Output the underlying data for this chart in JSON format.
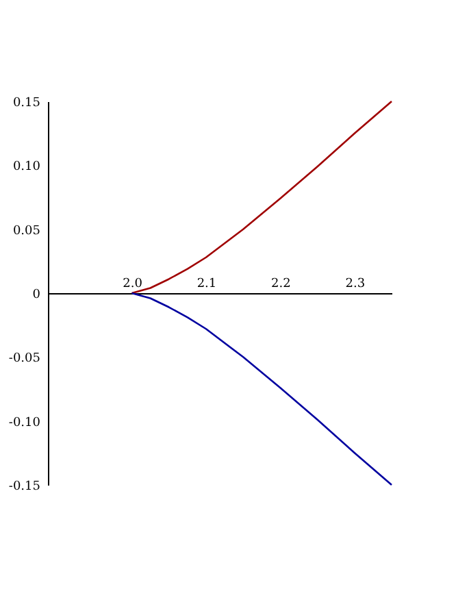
{
  "chart_data": {
    "type": "line",
    "x": [
      2.0,
      2.025,
      2.05,
      2.075,
      2.1,
      2.15,
      2.2,
      2.25,
      2.3,
      2.35
    ],
    "series": [
      {
        "color": "#a00000",
        "values": [
          0,
          0.004,
          0.011,
          0.019,
          0.028,
          0.05,
          0.074,
          0.099,
          0.125,
          0.15
        ]
      },
      {
        "color": "#0000a0",
        "values": [
          0,
          -0.004,
          -0.011,
          -0.019,
          -0.028,
          -0.05,
          -0.074,
          -0.099,
          -0.125,
          -0.15
        ]
      }
    ],
    "xlim": [
      1.887,
      2.35
    ],
    "ylim": [
      -0.15,
      0.15
    ],
    "xticks": [
      {
        "value": 2.0,
        "label": "2.0"
      },
      {
        "value": 2.1,
        "label": "2.1"
      },
      {
        "value": 2.2,
        "label": "2.2"
      },
      {
        "value": 2.3,
        "label": "2.3"
      }
    ],
    "yticks": [
      {
        "value": -0.15,
        "label": "-0.15"
      },
      {
        "value": -0.1,
        "label": "-0.10"
      },
      {
        "value": -0.05,
        "label": "-0.05"
      },
      {
        "value": 0,
        "label": "0"
      },
      {
        "value": 0.05,
        "label": "0.05"
      },
      {
        "value": 0.1,
        "label": "0.10"
      },
      {
        "value": 0.15,
        "label": "0.15"
      }
    ],
    "grid": false,
    "line_style": "solid",
    "marker": "none"
  }
}
